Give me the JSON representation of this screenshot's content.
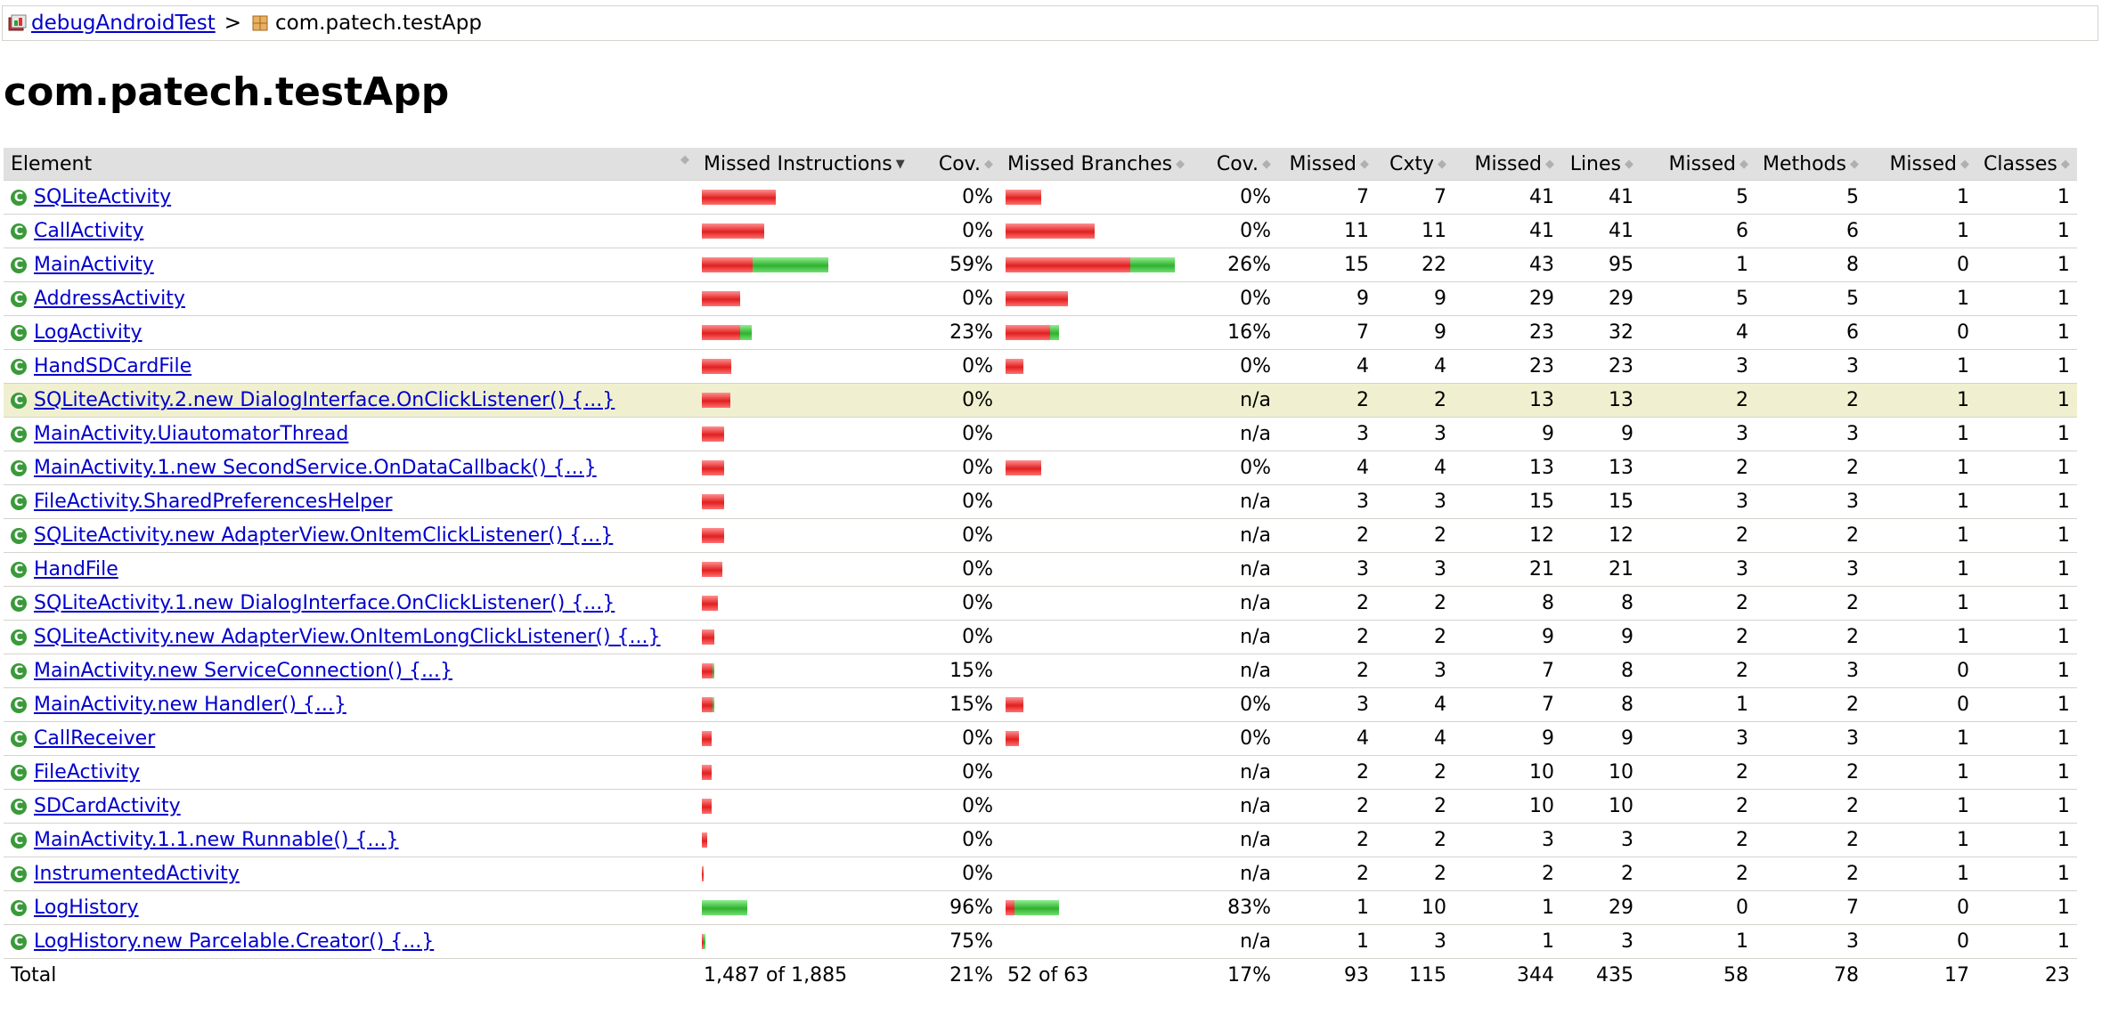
{
  "breadcrumb": {
    "session_link": "debugAndroidTest",
    "separator": ">",
    "package_label": "com.patech.testApp",
    "session_icon": "session-report-icon",
    "package_icon": "package-icon"
  },
  "page_title": "com.patech.testApp",
  "colors": {
    "missed": "#e02020",
    "covered": "#30b030",
    "highlight_row": "#f0f0d0",
    "header_bg": "#e0e0e0"
  },
  "columns": {
    "element": "Element",
    "missed_instructions": "Missed Instructions",
    "cov1": "Cov.",
    "missed_branches": "Missed Branches",
    "cov2": "Cov.",
    "missed_cxty": "Missed",
    "cxty": "Cxty",
    "missed_lines": "Missed",
    "lines": "Lines",
    "missed_methods": "Missed",
    "methods": "Methods",
    "missed_classes": "Missed",
    "classes": "Classes"
  },
  "rows": [
    {
      "name": "SQLiteActivity",
      "ins_missed_frac": 0.0658,
      "ins_covered_frac": 0,
      "ins_cov": "0%",
      "br_missed_frac": 0.0317,
      "br_covered_frac": 0,
      "br_cov": "0%",
      "cxty_missed": "7",
      "cxty": "7",
      "lines_missed": "41",
      "lines": "41",
      "methods_missed": "5",
      "methods": "5",
      "classes_missed": "1",
      "classes": "1"
    },
    {
      "name": "CallActivity",
      "ins_missed_frac": 0.0557,
      "ins_covered_frac": 0,
      "ins_cov": "0%",
      "br_missed_frac": 0.0794,
      "br_covered_frac": 0,
      "br_cov": "0%",
      "cxty_missed": "11",
      "cxty": "11",
      "lines_missed": "41",
      "lines": "41",
      "methods_missed": "6",
      "methods": "6",
      "classes_missed": "1",
      "classes": "1"
    },
    {
      "name": "MainActivity",
      "ins_missed_frac": 0.0456,
      "ins_covered_frac": 0.0674,
      "ins_cov": "59%",
      "br_missed_frac": 0.1111,
      "br_covered_frac": 0.0397,
      "br_cov": "26%",
      "cxty_missed": "15",
      "cxty": "22",
      "lines_missed": "43",
      "lines": "95",
      "methods_missed": "1",
      "methods": "8",
      "classes_missed": "0",
      "classes": "1"
    },
    {
      "name": "AddressActivity",
      "ins_missed_frac": 0.0345,
      "ins_covered_frac": 0,
      "ins_cov": "0%",
      "br_missed_frac": 0.0556,
      "br_covered_frac": 0,
      "br_cov": "0%",
      "cxty_missed": "9",
      "cxty": "9",
      "lines_missed": "29",
      "lines": "29",
      "methods_missed": "5",
      "methods": "5",
      "classes_missed": "1",
      "classes": "1"
    },
    {
      "name": "LogActivity",
      "ins_missed_frac": 0.0339,
      "ins_covered_frac": 0.0101,
      "ins_cov": "23%",
      "br_missed_frac": 0.0397,
      "br_covered_frac": 0.0079,
      "br_cov": "16%",
      "cxty_missed": "7",
      "cxty": "9",
      "lines_missed": "23",
      "lines": "32",
      "methods_missed": "4",
      "methods": "6",
      "classes_missed": "0",
      "classes": "1"
    },
    {
      "name": "HandSDCardFile",
      "ins_missed_frac": 0.0265,
      "ins_covered_frac": 0,
      "ins_cov": "0%",
      "br_missed_frac": 0.0159,
      "br_covered_frac": 0,
      "br_cov": "0%",
      "cxty_missed": "4",
      "cxty": "4",
      "lines_missed": "23",
      "lines": "23",
      "methods_missed": "3",
      "methods": "3",
      "classes_missed": "1",
      "classes": "1"
    },
    {
      "name": "SQLiteActivity.2.new DialogInterface.OnClickListener() {...}",
      "ins_missed_frac": 0.0255,
      "ins_covered_frac": 0,
      "ins_cov": "0%",
      "br_missed_frac": 0,
      "br_covered_frac": 0,
      "br_cov": "n/a",
      "cxty_missed": "2",
      "cxty": "2",
      "lines_missed": "13",
      "lines": "13",
      "methods_missed": "2",
      "methods": "2",
      "classes_missed": "1",
      "classes": "1",
      "highlight": true
    },
    {
      "name": "MainActivity.UiautomatorThread",
      "ins_missed_frac": 0.0202,
      "ins_covered_frac": 0,
      "ins_cov": "0%",
      "br_missed_frac": 0,
      "br_covered_frac": 0,
      "br_cov": "n/a",
      "cxty_missed": "3",
      "cxty": "3",
      "lines_missed": "9",
      "lines": "9",
      "methods_missed": "3",
      "methods": "3",
      "classes_missed": "1",
      "classes": "1"
    },
    {
      "name": "MainActivity.1.new SecondService.OnDataCallback() {...}",
      "ins_missed_frac": 0.0202,
      "ins_covered_frac": 0,
      "ins_cov": "0%",
      "br_missed_frac": 0.0317,
      "br_covered_frac": 0,
      "br_cov": "0%",
      "cxty_missed": "4",
      "cxty": "4",
      "lines_missed": "13",
      "lines": "13",
      "methods_missed": "2",
      "methods": "2",
      "classes_missed": "1",
      "classes": "1"
    },
    {
      "name": "FileActivity.SharedPreferencesHelper",
      "ins_missed_frac": 0.0202,
      "ins_covered_frac": 0,
      "ins_cov": "0%",
      "br_missed_frac": 0,
      "br_covered_frac": 0,
      "br_cov": "n/a",
      "cxty_missed": "3",
      "cxty": "3",
      "lines_missed": "15",
      "lines": "15",
      "methods_missed": "3",
      "methods": "3",
      "classes_missed": "1",
      "classes": "1"
    },
    {
      "name": "SQLiteActivity.new AdapterView.OnItemClickListener() {...}",
      "ins_missed_frac": 0.0196,
      "ins_covered_frac": 0,
      "ins_cov": "0%",
      "br_missed_frac": 0,
      "br_covered_frac": 0,
      "br_cov": "n/a",
      "cxty_missed": "2",
      "cxty": "2",
      "lines_missed": "12",
      "lines": "12",
      "methods_missed": "2",
      "methods": "2",
      "classes_missed": "1",
      "classes": "1"
    },
    {
      "name": "HandFile",
      "ins_missed_frac": 0.0186,
      "ins_covered_frac": 0,
      "ins_cov": "0%",
      "br_missed_frac": 0,
      "br_covered_frac": 0,
      "br_cov": "n/a",
      "cxty_missed": "3",
      "cxty": "3",
      "lines_missed": "21",
      "lines": "21",
      "methods_missed": "3",
      "methods": "3",
      "classes_missed": "1",
      "classes": "1"
    },
    {
      "name": "SQLiteActivity.1.new DialogInterface.OnClickListener() {...}",
      "ins_missed_frac": 0.0143,
      "ins_covered_frac": 0,
      "ins_cov": "0%",
      "br_missed_frac": 0,
      "br_covered_frac": 0,
      "br_cov": "n/a",
      "cxty_missed": "2",
      "cxty": "2",
      "lines_missed": "8",
      "lines": "8",
      "methods_missed": "2",
      "methods": "2",
      "classes_missed": "1",
      "classes": "1"
    },
    {
      "name": "SQLiteActivity.new AdapterView.OnItemLongClickListener() {...}",
      "ins_missed_frac": 0.0111,
      "ins_covered_frac": 0,
      "ins_cov": "0%",
      "br_missed_frac": 0,
      "br_covered_frac": 0,
      "br_cov": "n/a",
      "cxty_missed": "2",
      "cxty": "2",
      "lines_missed": "9",
      "lines": "9",
      "methods_missed": "2",
      "methods": "2",
      "classes_missed": "1",
      "classes": "1"
    },
    {
      "name": "MainActivity.new ServiceConnection() {...}",
      "ins_missed_frac": 0.0095,
      "ins_covered_frac": 0.0016,
      "ins_cov": "15%",
      "br_missed_frac": 0,
      "br_covered_frac": 0,
      "br_cov": "n/a",
      "cxty_missed": "2",
      "cxty": "3",
      "lines_missed": "7",
      "lines": "8",
      "methods_missed": "2",
      "methods": "3",
      "classes_missed": "0",
      "classes": "1"
    },
    {
      "name": "MainActivity.new Handler() {...}",
      "ins_missed_frac": 0.0095,
      "ins_covered_frac": 0.0016,
      "ins_cov": "15%",
      "br_missed_frac": 0.0159,
      "br_covered_frac": 0,
      "br_cov": "0%",
      "cxty_missed": "3",
      "cxty": "4",
      "lines_missed": "7",
      "lines": "8",
      "methods_missed": "1",
      "methods": "2",
      "classes_missed": "0",
      "classes": "1"
    },
    {
      "name": "CallReceiver",
      "ins_missed_frac": 0.0085,
      "ins_covered_frac": 0,
      "ins_cov": "0%",
      "br_missed_frac": 0.0119,
      "br_covered_frac": 0,
      "br_cov": "0%",
      "cxty_missed": "4",
      "cxty": "4",
      "lines_missed": "9",
      "lines": "9",
      "methods_missed": "3",
      "methods": "3",
      "classes_missed": "1",
      "classes": "1"
    },
    {
      "name": "FileActivity",
      "ins_missed_frac": 0.0085,
      "ins_covered_frac": 0,
      "ins_cov": "0%",
      "br_missed_frac": 0,
      "br_covered_frac": 0,
      "br_cov": "n/a",
      "cxty_missed": "2",
      "cxty": "2",
      "lines_missed": "10",
      "lines": "10",
      "methods_missed": "2",
      "methods": "2",
      "classes_missed": "1",
      "classes": "1"
    },
    {
      "name": "SDCardActivity",
      "ins_missed_frac": 0.0085,
      "ins_covered_frac": 0,
      "ins_cov": "0%",
      "br_missed_frac": 0,
      "br_covered_frac": 0,
      "br_cov": "n/a",
      "cxty_missed": "2",
      "cxty": "2",
      "lines_missed": "10",
      "lines": "10",
      "methods_missed": "2",
      "methods": "2",
      "classes_missed": "1",
      "classes": "1"
    },
    {
      "name": "MainActivity.1.1.new Runnable() {...}",
      "ins_missed_frac": 0.0048,
      "ins_covered_frac": 0,
      "ins_cov": "0%",
      "br_missed_frac": 0,
      "br_covered_frac": 0,
      "br_cov": "n/a",
      "cxty_missed": "2",
      "cxty": "2",
      "lines_missed": "3",
      "lines": "3",
      "methods_missed": "2",
      "methods": "2",
      "classes_missed": "1",
      "classes": "1"
    },
    {
      "name": "InstrumentedActivity",
      "ins_missed_frac": 0.0011,
      "ins_covered_frac": 0,
      "ins_cov": "0%",
      "br_missed_frac": 0,
      "br_covered_frac": 0,
      "br_cov": "n/a",
      "cxty_missed": "2",
      "cxty": "2",
      "lines_missed": "2",
      "lines": "2",
      "methods_missed": "2",
      "methods": "2",
      "classes_missed": "1",
      "classes": "1"
    },
    {
      "name": "LogHistory",
      "ins_missed_frac": 0,
      "ins_covered_frac": 0.0408,
      "ins_cov": "96%",
      "br_missed_frac": 0.0079,
      "br_covered_frac": 0.0397,
      "br_cov": "83%",
      "cxty_missed": "1",
      "cxty": "10",
      "lines_missed": "1",
      "lines": "29",
      "methods_missed": "0",
      "methods": "7",
      "classes_missed": "0",
      "classes": "1"
    },
    {
      "name": "LogHistory.new Parcelable.Creator() {...}",
      "ins_missed_frac": 0.0005,
      "ins_covered_frac": 0.0016,
      "ins_cov": "75%",
      "br_missed_frac": 0,
      "br_covered_frac": 0,
      "br_cov": "n/a",
      "cxty_missed": "1",
      "cxty": "3",
      "lines_missed": "1",
      "lines": "3",
      "methods_missed": "1",
      "methods": "3",
      "classes_missed": "0",
      "classes": "1"
    }
  ],
  "total": {
    "label": "Total",
    "missed_instructions": "1,487 of 1,885",
    "ins_cov": "21%",
    "missed_branches": "52 of 63",
    "br_cov": "17%",
    "cxty_missed": "93",
    "cxty": "115",
    "lines_missed": "344",
    "lines": "435",
    "methods_missed": "58",
    "methods": "78",
    "classes_missed": "17",
    "classes": "23"
  }
}
